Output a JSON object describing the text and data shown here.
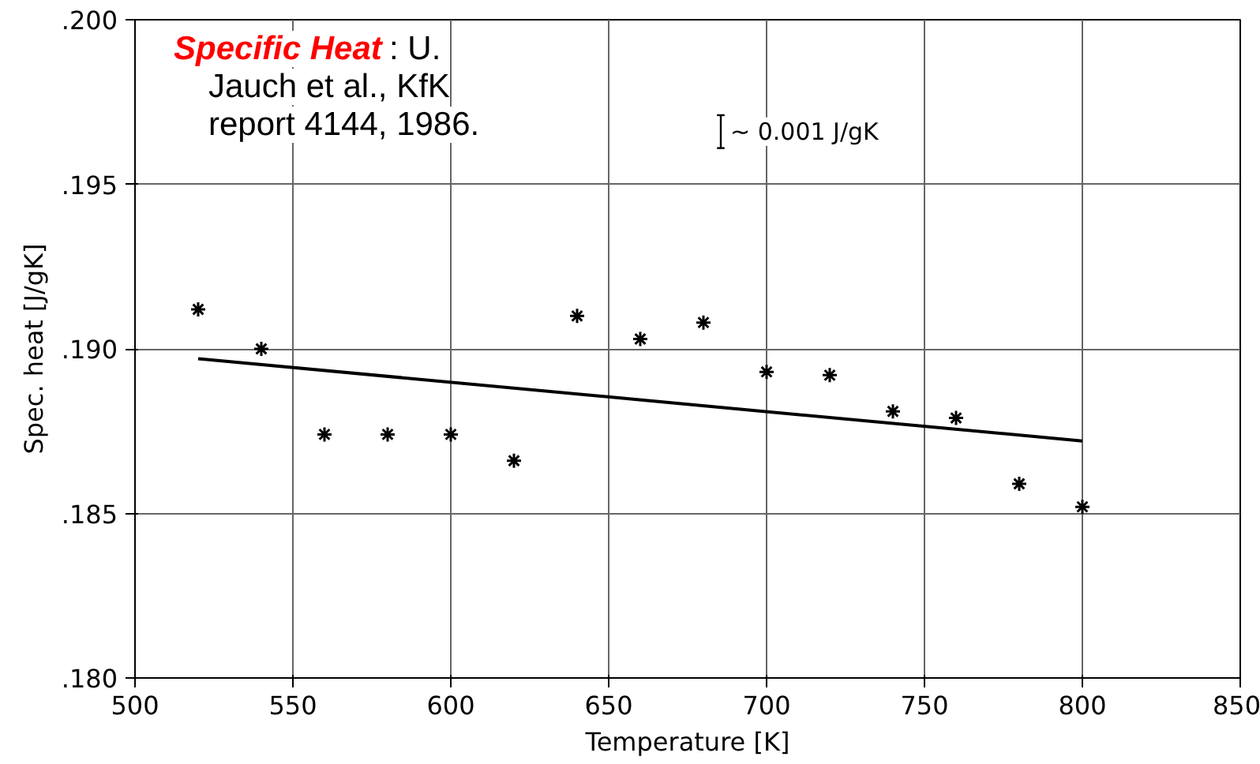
{
  "chart_data": {
    "type": "scatter",
    "xlabel": "Temperature [K]",
    "ylabel": "Spec. heat [J/gK]",
    "x": [
      520,
      540,
      560,
      580,
      600,
      620,
      640,
      660,
      680,
      700,
      720,
      740,
      760,
      780,
      800
    ],
    "series": [
      {
        "color": "#000000",
        "marker": "cross",
        "values": [
          0.1912,
          0.19,
          0.1874,
          0.1874,
          0.1874,
          0.1866,
          0.191,
          0.1903,
          0.1908,
          0.1893,
          0.1892,
          0.1881,
          0.1879,
          0.1859,
          0.1852
        ]
      },
      {
        "type": "line",
        "color": "#000000",
        "x": [
          520,
          800
        ],
        "values": [
          0.1897,
          0.1872
        ]
      }
    ],
    "xlim": [
      500,
      850
    ],
    "xticks": [
      500,
      550,
      600,
      650,
      700,
      750,
      800,
      850
    ],
    "ylim": [
      0.18,
      0.2
    ],
    "yticks": [
      {
        "value": 0.18,
        "label": ".180"
      },
      {
        "value": 0.185,
        "label": ".185"
      },
      {
        "value": 0.19,
        "label": ".190"
      },
      {
        "value": 0.195,
        "label": ".195"
      },
      {
        "value": 0.2,
        "label": ".200"
      }
    ],
    "grid": true,
    "annotations": [
      "Specific Heat",
      ": U. Jauch et al., KfK report 4144, 1986.",
      "~ 0.001 J/gK"
    ]
  }
}
